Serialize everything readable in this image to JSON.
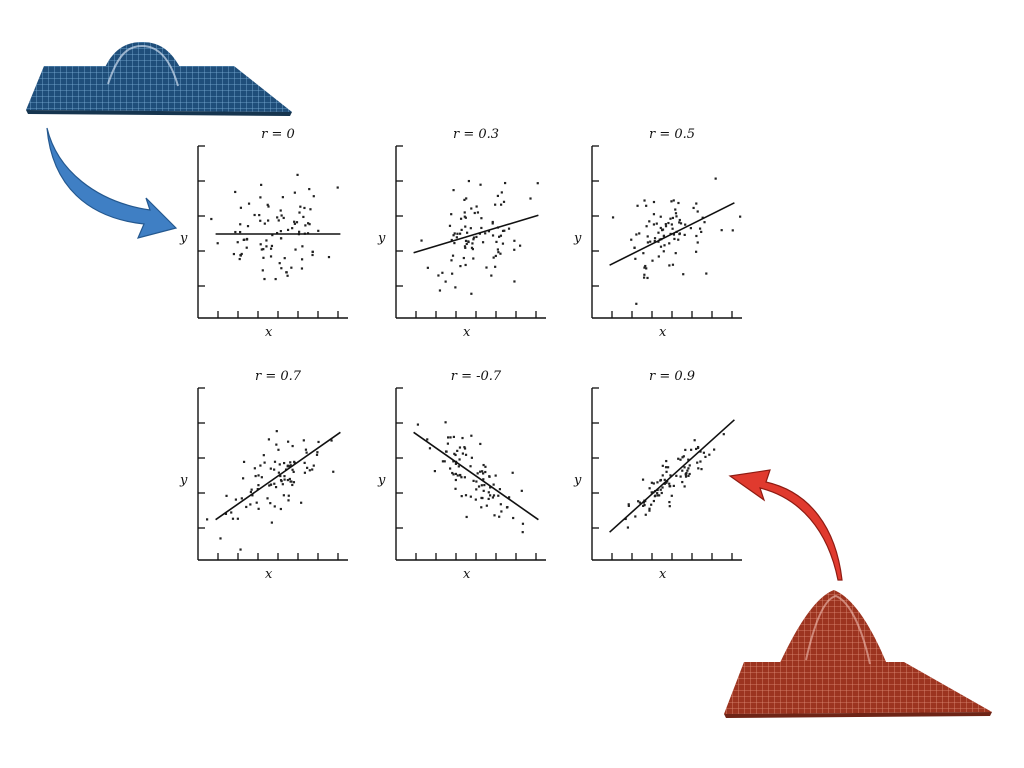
{
  "illustration": {
    "top_surface_icon": "bivariate-normal-surface-flat",
    "bottom_surface_icon": "bivariate-normal-surface-peaked",
    "top_surface_color": "#1f4e7a",
    "bottom_surface_color": "#a63a25",
    "top_arrow_color": "#3f7fc4",
    "bottom_arrow_color": "#e03a2e"
  },
  "chart_data": [
    {
      "type": "scatter",
      "title": "r = 0",
      "r": 0,
      "xlabel": "x",
      "ylabel": "y",
      "fit_line": {
        "slope": 0,
        "intercept": 0
      }
    },
    {
      "type": "scatter",
      "title": "r = 0.3",
      "r": 0.3,
      "xlabel": "x",
      "ylabel": "y",
      "fit_line": {
        "slope": 0.3,
        "intercept": 0
      }
    },
    {
      "type": "scatter",
      "title": "r = 0.5",
      "r": 0.5,
      "xlabel": "x",
      "ylabel": "y",
      "fit_line": {
        "slope": 0.5,
        "intercept": 0
      }
    },
    {
      "type": "scatter",
      "title": "r = 0.7",
      "r": 0.7,
      "xlabel": "x",
      "ylabel": "y",
      "fit_line": {
        "slope": 0.7,
        "intercept": 0
      }
    },
    {
      "type": "scatter",
      "title": "r = -0.7",
      "r": -0.7,
      "xlabel": "x",
      "ylabel": "y",
      "fit_line": {
        "slope": -0.7,
        "intercept": 0
      }
    },
    {
      "type": "scatter",
      "title": "r = 0.9",
      "r": 0.9,
      "xlabel": "x",
      "ylabel": "y",
      "fit_line": {
        "slope": 0.9,
        "intercept": 0
      }
    }
  ]
}
